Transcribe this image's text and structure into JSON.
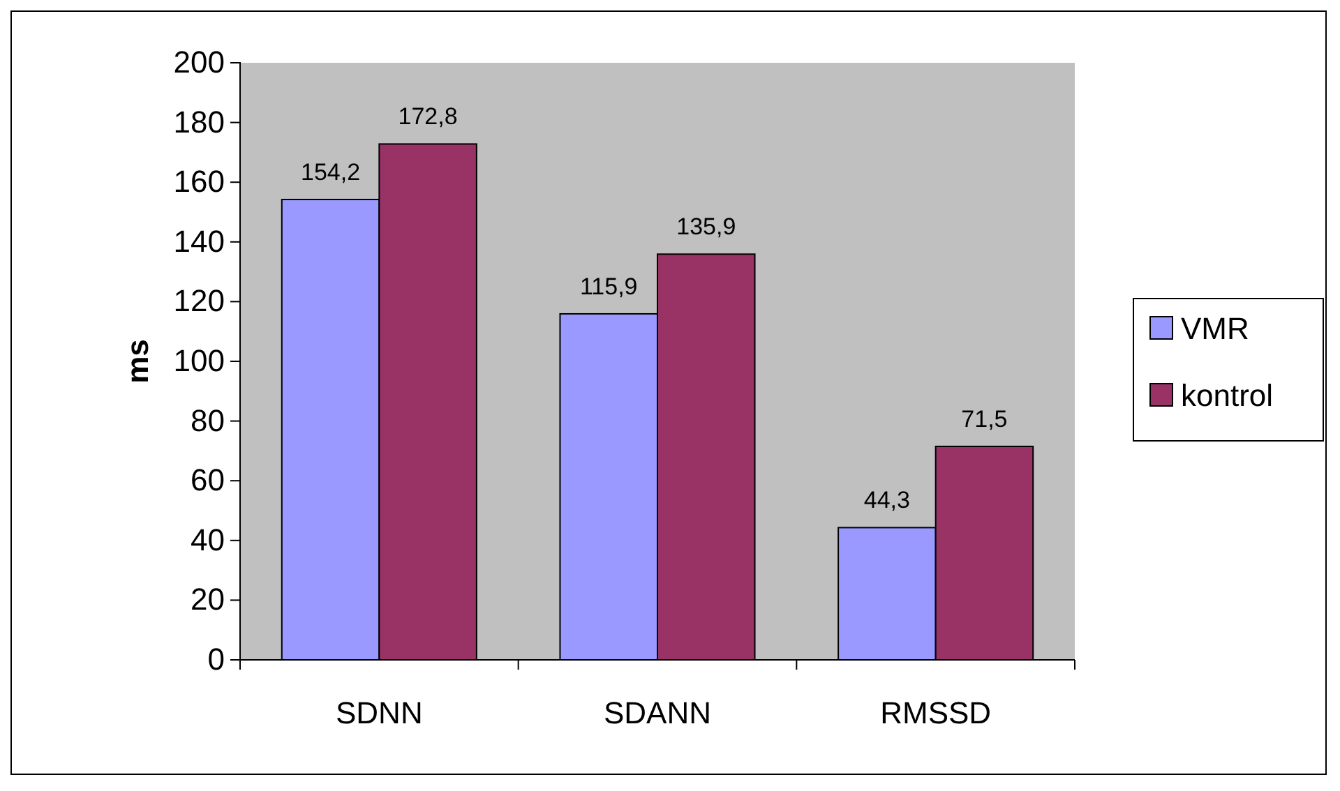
{
  "chart_data": {
    "type": "bar",
    "ylabel": "ms",
    "categories": [
      "SDNN",
      "SDANN",
      "RMSSD"
    ],
    "series": [
      {
        "name": "VMR",
        "color": "#9999ff",
        "values": [
          154.2,
          115.9,
          44.3
        ],
        "value_labels": [
          "154,2",
          "115,9",
          "44,3"
        ]
      },
      {
        "name": "kontrol",
        "color": "#993366",
        "values": [
          172.8,
          135.9,
          71.5
        ],
        "value_labels": [
          "172,8",
          "135,9",
          "71,5"
        ]
      }
    ],
    "ylim": [
      0,
      200
    ],
    "yticks": [
      0,
      20,
      40,
      60,
      80,
      100,
      120,
      140,
      160,
      180,
      200
    ],
    "grid": false,
    "legend": "right"
  }
}
